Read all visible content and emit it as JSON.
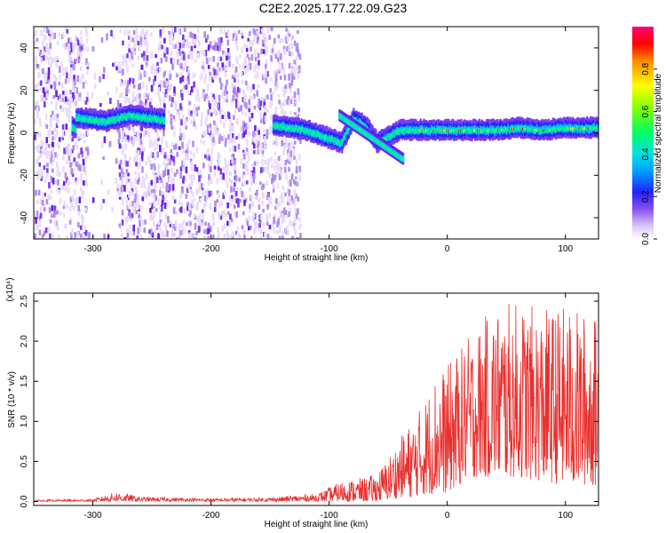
{
  "title": "C2E2.2025.177.22.09.G23",
  "chart_data": [
    {
      "type": "heatmap",
      "xlabel": "Height of straight line (km)",
      "ylabel": "Frequency (Hz)",
      "xlim": [
        -350,
        128
      ],
      "ylim": [
        -50,
        50
      ],
      "x_ticks": [
        -300,
        -200,
        -100,
        0,
        100
      ],
      "y_ticks": [
        -40,
        -20,
        0,
        20,
        40
      ],
      "colorbar": {
        "label": "Normalized spectral amplitude",
        "range": [
          0,
          1
        ],
        "ticks": [
          "0.0",
          "0.2",
          "0.4",
          "0.6",
          "0.8"
        ],
        "tick_values": [
          0,
          0.2,
          0.4,
          0.6,
          0.8
        ]
      },
      "ridge": {
        "description_points_x": [
          -315,
          -290,
          -270,
          -245,
          -145,
          -120,
          -100,
          -90,
          -80,
          -70,
          -60,
          -40,
          -20,
          0,
          20,
          40,
          60,
          80,
          100,
          128
        ],
        "description_points_freq": [
          7,
          5,
          8,
          6,
          3,
          1,
          -3,
          -5,
          6,
          3,
          -5,
          1,
          1,
          1,
          1,
          1,
          2,
          1,
          2,
          2
        ]
      },
      "noise_region_x": [
        -350,
        -125
      ],
      "colors": [
        "#e9dcfb",
        "#b08cf0",
        "#7a3df0",
        "#6a1bf0",
        "#2222ff",
        "#00ccff",
        "#00ff88",
        "#aaff00",
        "#ffff00",
        "#ff8800",
        "#ff0000",
        "#ff0077"
      ]
    },
    {
      "type": "line",
      "xlabel": "Height of straight line (km)",
      "ylabel": "SNR (10 * v/v)",
      "y_multiplier_label": "(x10⁴)",
      "xlim": [
        -350,
        128
      ],
      "ylim": [
        -0.05,
        2.6
      ],
      "x_ticks": [
        -300,
        -200,
        -100,
        0,
        100
      ],
      "y_ticks": [
        "0.0",
        "0.5",
        "1.0",
        "1.5",
        "2.0",
        "2.5"
      ],
      "y_tick_values": [
        0,
        0.5,
        1.0,
        1.5,
        2.0,
        2.5
      ],
      "series_color": "#e8302e",
      "envelope": {
        "x": [
          -350,
          -300,
          -280,
          -260,
          -200,
          -150,
          -110,
          -90,
          -70,
          -60,
          -50,
          -40,
          -30,
          -20,
          -10,
          0,
          10,
          20,
          40,
          60,
          80,
          100,
          128
        ],
        "upper": [
          0.02,
          0.03,
          0.12,
          0.06,
          0.04,
          0.05,
          0.1,
          0.25,
          0.3,
          0.35,
          0.55,
          0.8,
          1.0,
          1.25,
          1.6,
          1.7,
          1.9,
          2.1,
          2.45,
          2.5,
          2.4,
          2.45,
          2.3
        ],
        "lower": [
          0.0,
          0.0,
          0.0,
          0.0,
          0.0,
          0.0,
          0.0,
          0.0,
          0.0,
          0.0,
          0.02,
          0.05,
          0.05,
          0.08,
          0.1,
          0.1,
          0.2,
          0.3,
          0.3,
          0.3,
          0.25,
          0.2,
          0.2
        ]
      }
    }
  ]
}
